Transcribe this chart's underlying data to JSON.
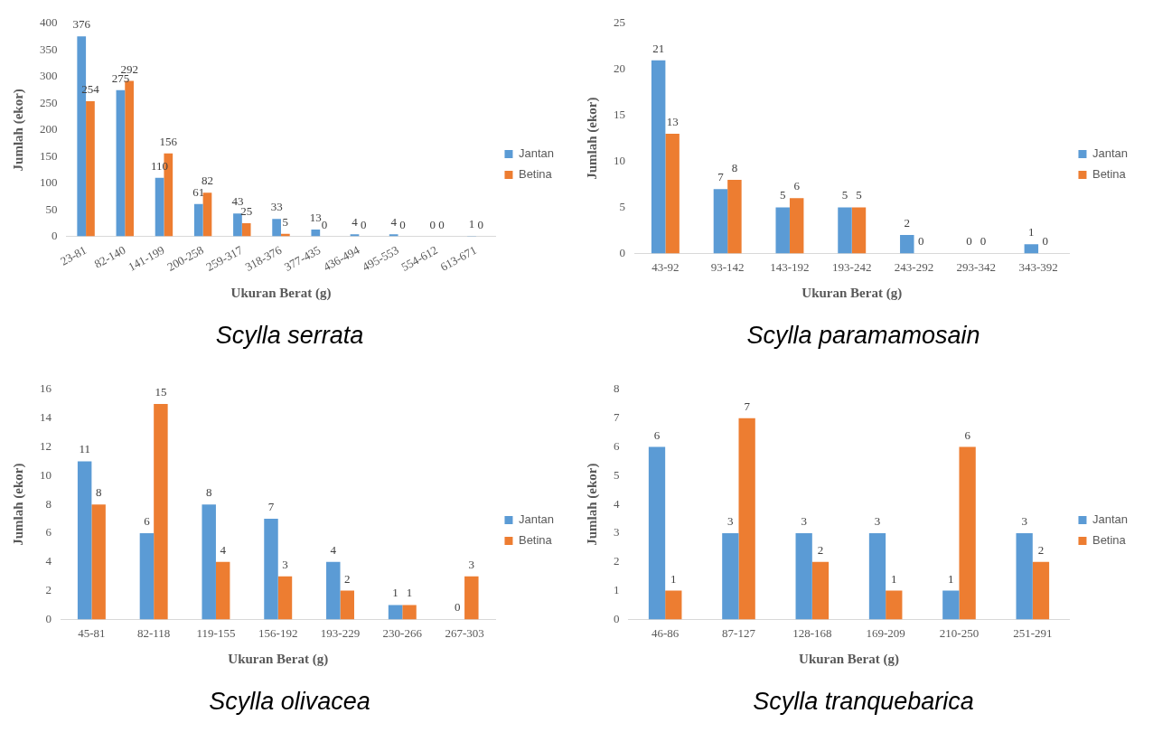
{
  "chart_data": [
    {
      "type": "bar",
      "title": "Scylla serrata",
      "xlabel": "Ukuran Berat (g)",
      "ylabel": "Jumlah (ekor)",
      "categories": [
        "23-81",
        "82-140",
        "141-199",
        "200-258",
        "259-317",
        "318-376",
        "377-435",
        "436-494",
        "495-553",
        "554-612",
        "613-671"
      ],
      "series": [
        {
          "name": "Jantan",
          "color": "#5b9bd5",
          "values": [
            376,
            275,
            110,
            61,
            43,
            33,
            13,
            4,
            4,
            0,
            1
          ]
        },
        {
          "name": "Betina",
          "color": "#ed7d31",
          "values": [
            254,
            292,
            156,
            82,
            25,
            5,
            0,
            0,
            0,
            0,
            0
          ]
        }
      ],
      "ylim": [
        0,
        400
      ],
      "yticks": [
        0,
        50,
        100,
        150,
        200,
        250,
        300,
        350,
        400
      ],
      "grid": false,
      "legend": "right",
      "data_labels": true
    },
    {
      "type": "bar",
      "title": "Scylla paramamosain",
      "xlabel": "Ukuran Berat (g)",
      "ylabel": "Jumlah (ekor)",
      "categories": [
        "43-92",
        "93-142",
        "143-192",
        "193-242",
        "243-292",
        "293-342",
        "343-392"
      ],
      "series": [
        {
          "name": "Jantan",
          "color": "#5b9bd5",
          "values": [
            21,
            7,
            5,
            5,
            2,
            0,
            1
          ]
        },
        {
          "name": "Betina",
          "color": "#ed7d31",
          "values": [
            13,
            8,
            6,
            5,
            0,
            0,
            0
          ]
        }
      ],
      "ylim": [
        0,
        25
      ],
      "yticks": [
        0,
        5,
        10,
        15,
        20,
        25
      ],
      "grid": false,
      "legend": "right",
      "data_labels": true
    },
    {
      "type": "bar",
      "title": "Scylla olivacea",
      "xlabel": "Ukuran Berat (g)",
      "ylabel": "Jumlah (ekor)",
      "categories": [
        "45-81",
        "82-118",
        "119-155",
        "156-192",
        "193-229",
        "230-266",
        "267-303"
      ],
      "series": [
        {
          "name": "Jantan",
          "color": "#5b9bd5",
          "values": [
            11,
            6,
            8,
            7,
            4,
            1,
            0
          ]
        },
        {
          "name": "Betina",
          "color": "#ed7d31",
          "values": [
            8,
            15,
            4,
            3,
            2,
            1,
            3
          ]
        }
      ],
      "ylim": [
        0,
        16
      ],
      "yticks": [
        0,
        2,
        4,
        6,
        8,
        10,
        12,
        14,
        16
      ],
      "grid": false,
      "legend": "right",
      "data_labels": true
    },
    {
      "type": "bar",
      "title": "Scylla tranquebarica",
      "xlabel": "Ukuran Berat (g)",
      "ylabel": "Jumlah (ekor)",
      "categories": [
        "46-86",
        "87-127",
        "128-168",
        "169-209",
        "210-250",
        "251-291"
      ],
      "series": [
        {
          "name": "Jantan",
          "color": "#5b9bd5",
          "values": [
            6,
            3,
            3,
            3,
            1,
            3
          ]
        },
        {
          "name": "Betina",
          "color": "#ed7d31",
          "values": [
            1,
            7,
            2,
            1,
            6,
            2
          ]
        }
      ],
      "ylim": [
        0,
        8
      ],
      "yticks": [
        0,
        1,
        2,
        3,
        4,
        5,
        6,
        7,
        8
      ],
      "grid": false,
      "legend": "right",
      "data_labels": true
    }
  ]
}
